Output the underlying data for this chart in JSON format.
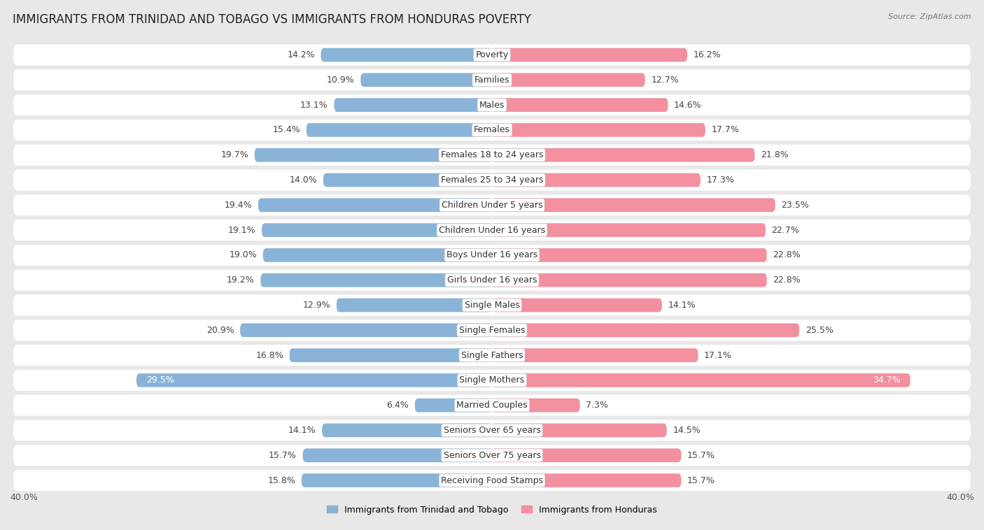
{
  "title": "IMMIGRANTS FROM TRINIDAD AND TOBAGO VS IMMIGRANTS FROM HONDURAS POVERTY",
  "source": "Source: ZipAtlas.com",
  "categories": [
    "Poverty",
    "Families",
    "Males",
    "Females",
    "Females 18 to 24 years",
    "Females 25 to 34 years",
    "Children Under 5 years",
    "Children Under 16 years",
    "Boys Under 16 years",
    "Girls Under 16 years",
    "Single Males",
    "Single Females",
    "Single Fathers",
    "Single Mothers",
    "Married Couples",
    "Seniors Over 65 years",
    "Seniors Over 75 years",
    "Receiving Food Stamps"
  ],
  "left_values": [
    14.2,
    10.9,
    13.1,
    15.4,
    19.7,
    14.0,
    19.4,
    19.1,
    19.0,
    19.2,
    12.9,
    20.9,
    16.8,
    29.5,
    6.4,
    14.1,
    15.7,
    15.8
  ],
  "right_values": [
    16.2,
    12.7,
    14.6,
    17.7,
    21.8,
    17.3,
    23.5,
    22.7,
    22.8,
    22.8,
    14.1,
    25.5,
    17.1,
    34.7,
    7.3,
    14.5,
    15.7,
    15.7
  ],
  "left_color": "#8ab4d7",
  "right_color": "#f2909f",
  "left_label": "Immigrants from Trinidad and Tobago",
  "right_label": "Immigrants from Honduras",
  "x_max": 40.0,
  "bg_color": "#e8e8e8",
  "row_color": "#ffffff",
  "label_fontsize": 9,
  "value_fontsize": 9,
  "title_fontsize": 12
}
